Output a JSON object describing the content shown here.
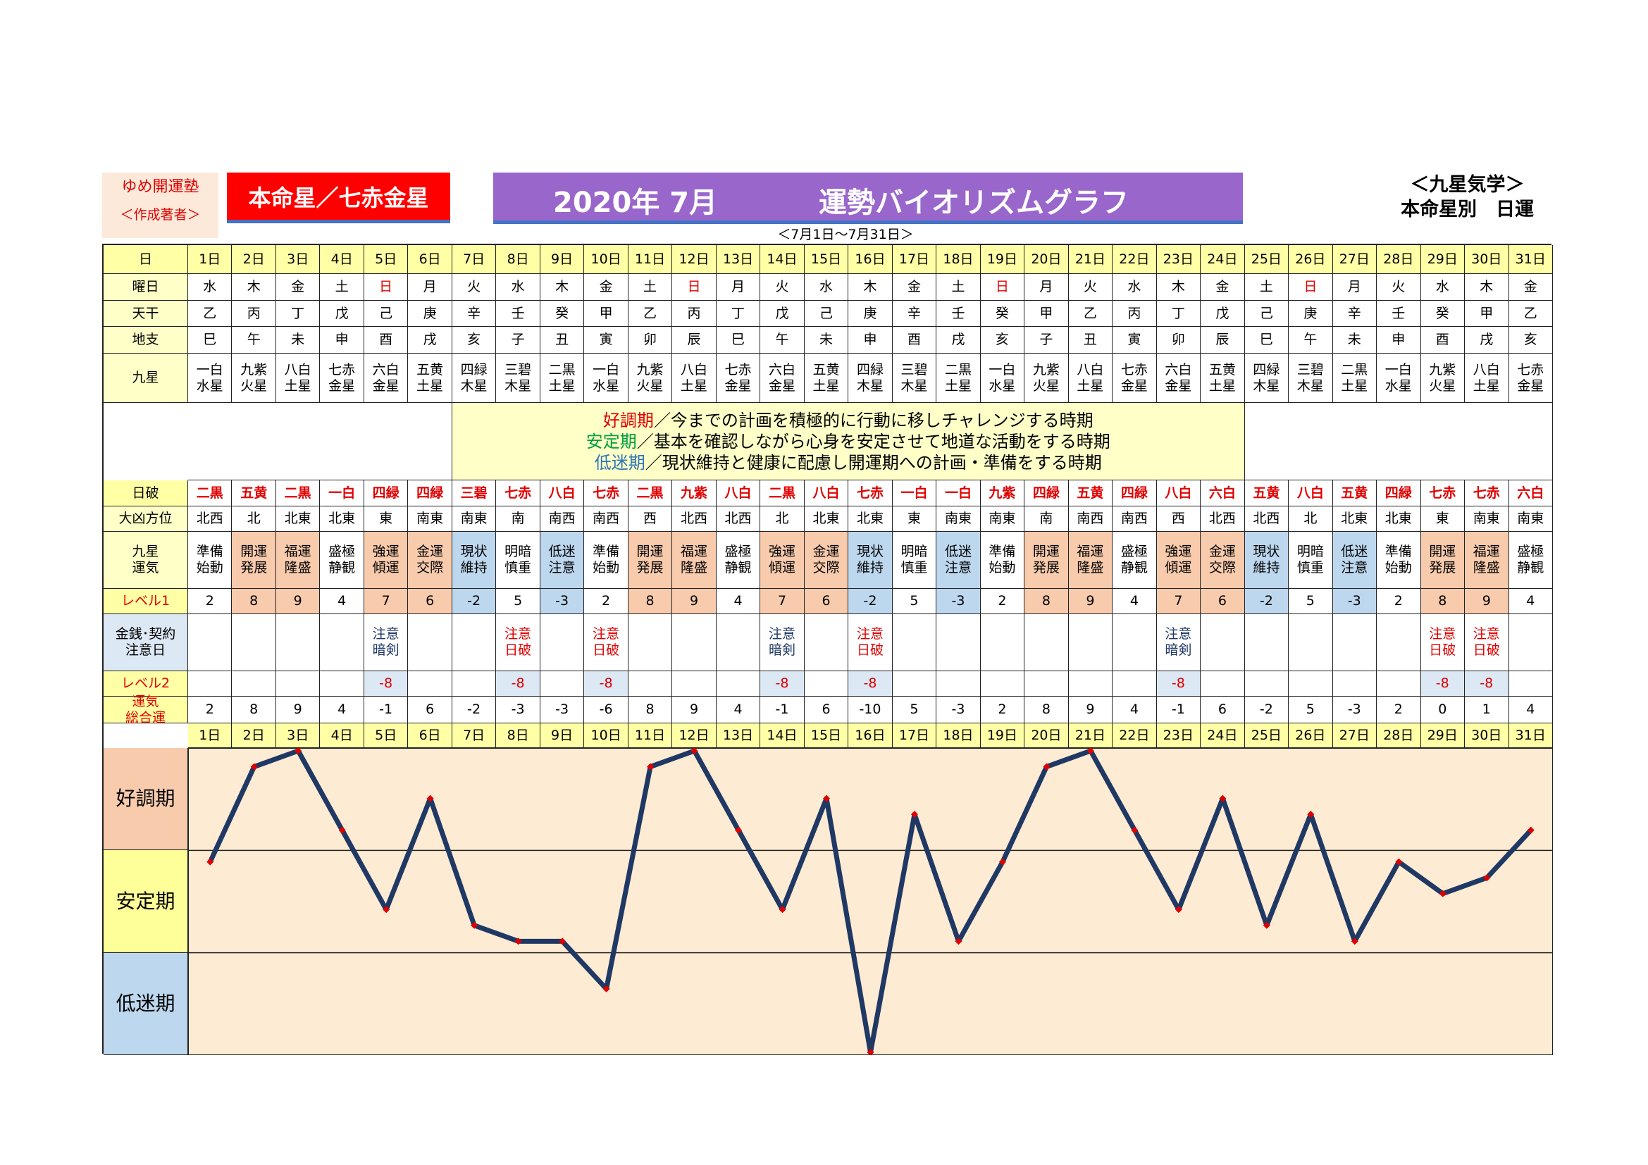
{
  "header": {
    "school": "ゆめ開運塾",
    "author_note": "＜作成著者＞",
    "honmei": "本命星／七赤金星",
    "year_month": "2020年 7月",
    "title": "運勢バイオリズムグラフ",
    "kigaku": "＜九星気学＞",
    "subtitle": "本命星別　日運",
    "range": "＜7月1日～7月31日＞"
  },
  "labels": {
    "day": {
      "lines": [
        "日"
      ],
      "color": "#000000",
      "bg": "#ffffa6"
    },
    "weekday": {
      "lines": [
        "曜日"
      ],
      "color": "#000000",
      "bg": "#ffffc8"
    },
    "kan": {
      "lines": [
        "天干"
      ],
      "color": "#000000",
      "bg": "#ffffc8"
    },
    "shi": {
      "lines": [
        "地支"
      ],
      "color": "#000000",
      "bg": "#ffffc8"
    },
    "star": {
      "lines": [
        "九星"
      ],
      "color": "#000000",
      "bg": "#ffffc8"
    },
    "hiha": {
      "lines": [
        "日破"
      ],
      "color": "#000000",
      "bg": "#ffffa6"
    },
    "direction": {
      "lines": [
        "大凶方位"
      ],
      "color": "#000000",
      "bg": "#ffffc8"
    },
    "unki": {
      "lines": [
        "九星",
        "運気"
      ],
      "color": "#000000",
      "bg": "#ffffc8"
    },
    "level1": {
      "lines": [
        "レベル1"
      ],
      "color": "#e00000",
      "bg": "#ffffa6"
    },
    "caution": {
      "lines": [
        "金銭･契約",
        "注意日"
      ],
      "color": "#000000",
      "bg": "#dde8f5"
    },
    "level2": {
      "lines": [
        "レベル2"
      ],
      "color": "#e00000",
      "bg": "#ffffa6"
    },
    "total": {
      "lines": [
        "運気",
        "総合運"
      ],
      "color": "#e00000",
      "bg": "#ffffa6"
    }
  },
  "legend": [
    {
      "term": "好調期",
      "text": "／今までの計画を積極的に行動に移しチャレンジする時期",
      "color": "#e00000"
    },
    {
      "term": "安定期",
      "text": "／基本を確認しながら心身を安定させて地道な活動をする時期",
      "color": "#00a040"
    },
    {
      "term": "低迷期",
      "text": "／現状維持と健康に配慮し開運期への計画・準備をする時期",
      "color": "#2e75b6"
    }
  ],
  "days": [
    "1日",
    "2日",
    "3日",
    "4日",
    "5日",
    "6日",
    "7日",
    "8日",
    "9日",
    "10日",
    "11日",
    "12日",
    "13日",
    "14日",
    "15日",
    "16日",
    "17日",
    "18日",
    "19日",
    "20日",
    "21日",
    "22日",
    "23日",
    "24日",
    "25日",
    "26日",
    "27日",
    "28日",
    "29日",
    "30日",
    "31日"
  ],
  "weekdays": [
    "水",
    "木",
    "金",
    "土",
    "日",
    "月",
    "火",
    "水",
    "木",
    "金",
    "土",
    "日",
    "月",
    "火",
    "水",
    "木",
    "金",
    "土",
    "日",
    "月",
    "火",
    "水",
    "木",
    "金",
    "土",
    "日",
    "月",
    "火",
    "水",
    "木",
    "金"
  ],
  "weekday_colors": [
    "#000",
    "#000",
    "#000",
    "#000",
    "#e00000",
    "#000",
    "#000",
    "#000",
    "#000",
    "#000",
    "#000",
    "#e00000",
    "#000",
    "#000",
    "#000",
    "#000",
    "#000",
    "#000",
    "#e00000",
    "#000",
    "#000",
    "#000",
    "#000",
    "#000",
    "#000",
    "#e00000",
    "#000",
    "#000",
    "#000",
    "#000",
    "#000"
  ],
  "kan": [
    "乙",
    "丙",
    "丁",
    "戊",
    "己",
    "庚",
    "辛",
    "壬",
    "癸",
    "甲",
    "乙",
    "丙",
    "丁",
    "戊",
    "己",
    "庚",
    "辛",
    "壬",
    "癸",
    "甲",
    "乙",
    "丙",
    "丁",
    "戊",
    "己",
    "庚",
    "辛",
    "壬",
    "癸",
    "甲",
    "乙"
  ],
  "shi": [
    "巳",
    "午",
    "未",
    "申",
    "酉",
    "戌",
    "亥",
    "子",
    "丑",
    "寅",
    "卯",
    "辰",
    "巳",
    "午",
    "未",
    "申",
    "酉",
    "戌",
    "亥",
    "子",
    "丑",
    "寅",
    "卯",
    "辰",
    "巳",
    "午",
    "未",
    "申",
    "酉",
    "戌",
    "亥"
  ],
  "stars": [
    [
      "一白",
      "水星"
    ],
    [
      "九紫",
      "火星"
    ],
    [
      "八白",
      "土星"
    ],
    [
      "七赤",
      "金星"
    ],
    [
      "六白",
      "金星"
    ],
    [
      "五黄",
      "土星"
    ],
    [
      "四緑",
      "木星"
    ],
    [
      "三碧",
      "木星"
    ],
    [
      "二黒",
      "土星"
    ],
    [
      "一白",
      "水星"
    ],
    [
      "九紫",
      "火星"
    ],
    [
      "八白",
      "土星"
    ],
    [
      "七赤",
      "金星"
    ],
    [
      "六白",
      "金星"
    ],
    [
      "五黄",
      "土星"
    ],
    [
      "四緑",
      "木星"
    ],
    [
      "三碧",
      "木星"
    ],
    [
      "二黒",
      "土星"
    ],
    [
      "一白",
      "水星"
    ],
    [
      "九紫",
      "火星"
    ],
    [
      "八白",
      "土星"
    ],
    [
      "七赤",
      "金星"
    ],
    [
      "六白",
      "金星"
    ],
    [
      "五黄",
      "土星"
    ],
    [
      "四緑",
      "木星"
    ],
    [
      "三碧",
      "木星"
    ],
    [
      "二黒",
      "土星"
    ],
    [
      "一白",
      "水星"
    ],
    [
      "九紫",
      "火星"
    ],
    [
      "八白",
      "土星"
    ],
    [
      "七赤",
      "金星"
    ]
  ],
  "hiha": [
    "二黒",
    "五黄",
    "二黒",
    "一白",
    "四緑",
    "四緑",
    "三碧",
    "七赤",
    "八白",
    "七赤",
    "二黒",
    "九紫",
    "八白",
    "二黒",
    "八白",
    "七赤",
    "一白",
    "一白",
    "九紫",
    "四緑",
    "五黄",
    "四緑",
    "八白",
    "六白",
    "五黄",
    "八白",
    "五黄",
    "四緑",
    "七赤",
    "七赤",
    "六白"
  ],
  "hiha_color": "#e00000",
  "directions": [
    "北西",
    "北",
    "北東",
    "北東",
    "東",
    "南東",
    "南東",
    "南",
    "南西",
    "南西",
    "西",
    "北西",
    "北西",
    "北",
    "北東",
    "北東",
    "東",
    "南東",
    "南東",
    "南",
    "南西",
    "南西",
    "西",
    "北西",
    "北西",
    "北",
    "北東",
    "北東",
    "東",
    "南東",
    "南東"
  ],
  "unki": [
    [
      "準備",
      "始動"
    ],
    [
      "開運",
      "発展"
    ],
    [
      "福運",
      "隆盛"
    ],
    [
      "盛極",
      "静観"
    ],
    [
      "強運",
      "傾運"
    ],
    [
      "金運",
      "交際"
    ],
    [
      "現状",
      "維持"
    ],
    [
      "明暗",
      "慎重"
    ],
    [
      "低迷",
      "注意"
    ],
    [
      "準備",
      "始動"
    ],
    [
      "開運",
      "発展"
    ],
    [
      "福運",
      "隆盛"
    ],
    [
      "盛極",
      "静観"
    ],
    [
      "強運",
      "傾運"
    ],
    [
      "金運",
      "交際"
    ],
    [
      "現状",
      "維持"
    ],
    [
      "明暗",
      "慎重"
    ],
    [
      "低迷",
      "注意"
    ],
    [
      "準備",
      "始動"
    ],
    [
      "開運",
      "発展"
    ],
    [
      "福運",
      "隆盛"
    ],
    [
      "盛極",
      "静観"
    ],
    [
      "強運",
      "傾運"
    ],
    [
      "金運",
      "交際"
    ],
    [
      "現状",
      "維持"
    ],
    [
      "明暗",
      "慎重"
    ],
    [
      "低迷",
      "注意"
    ],
    [
      "準備",
      "始動"
    ],
    [
      "開運",
      "発展"
    ],
    [
      "福運",
      "隆盛"
    ],
    [
      "盛極",
      "静観"
    ]
  ],
  "tone_fill": [
    "#fff",
    "#f8cbad",
    "#f8cbad",
    "#fff",
    "#f8cbad",
    "#f8cbad",
    "#bdd7ee",
    "#fff",
    "#bdd7ee",
    "#fff",
    "#f8cbad",
    "#f8cbad",
    "#fff",
    "#f8cbad",
    "#f8cbad",
    "#bdd7ee",
    "#fff",
    "#bdd7ee",
    "#fff",
    "#f8cbad",
    "#f8cbad",
    "#fff",
    "#f8cbad",
    "#f8cbad",
    "#bdd7ee",
    "#fff",
    "#bdd7ee",
    "#fff",
    "#f8cbad",
    "#f8cbad",
    "#fff"
  ],
  "level1": [
    2,
    8,
    9,
    4,
    7,
    6,
    -2,
    5,
    -3,
    2,
    8,
    9,
    4,
    7,
    6,
    -2,
    5,
    -3,
    2,
    8,
    9,
    4,
    7,
    6,
    -2,
    5,
    -3,
    2,
    8,
    9,
    4
  ],
  "caution": [
    null,
    null,
    null,
    null,
    {
      "lines": [
        "注意",
        "暗剣"
      ],
      "color": "#1f3864"
    },
    null,
    null,
    {
      "lines": [
        "注意",
        "日破"
      ],
      "color": "#e00000"
    },
    null,
    {
      "lines": [
        "注意",
        "日破"
      ],
      "color": "#e00000"
    },
    null,
    null,
    null,
    {
      "lines": [
        "注意",
        "暗剣"
      ],
      "color": "#1f3864"
    },
    null,
    {
      "lines": [
        "注意",
        "日破"
      ],
      "color": "#e00000"
    },
    null,
    null,
    null,
    null,
    null,
    null,
    {
      "lines": [
        "注意",
        "暗剣"
      ],
      "color": "#1f3864"
    },
    null,
    null,
    null,
    null,
    null,
    {
      "lines": [
        "注意",
        "日破"
      ],
      "color": "#e00000"
    },
    {
      "lines": [
        "注意",
        "日破"
      ],
      "color": "#e00000"
    },
    null
  ],
  "level2": [
    null,
    null,
    null,
    null,
    -8,
    null,
    null,
    -8,
    null,
    -8,
    null,
    null,
    null,
    -8,
    null,
    -8,
    null,
    null,
    null,
    null,
    null,
    null,
    -8,
    null,
    null,
    null,
    null,
    null,
    -8,
    -8,
    null
  ],
  "level2_fill": "#dde8f5",
  "level2_color": "#e00000",
  "total": [
    2,
    8,
    9,
    4,
    -1,
    6,
    -2,
    -3,
    -3,
    -6,
    8,
    9,
    4,
    -1,
    6,
    -10,
    5,
    -3,
    2,
    8,
    9,
    4,
    -1,
    6,
    -2,
    5,
    -3,
    2,
    0,
    1,
    4
  ],
  "chart": {
    "type": "line",
    "ylim": [
      -10,
      9
    ],
    "color": "#1f3864",
    "marker_color": "#e00000",
    "background": "#fdebd3",
    "bands": [
      "好調期",
      "安定期",
      "低迷期"
    ],
    "band_colors": [
      "#f8cbad",
      "#ffff99",
      "#bdd7ee"
    ]
  }
}
